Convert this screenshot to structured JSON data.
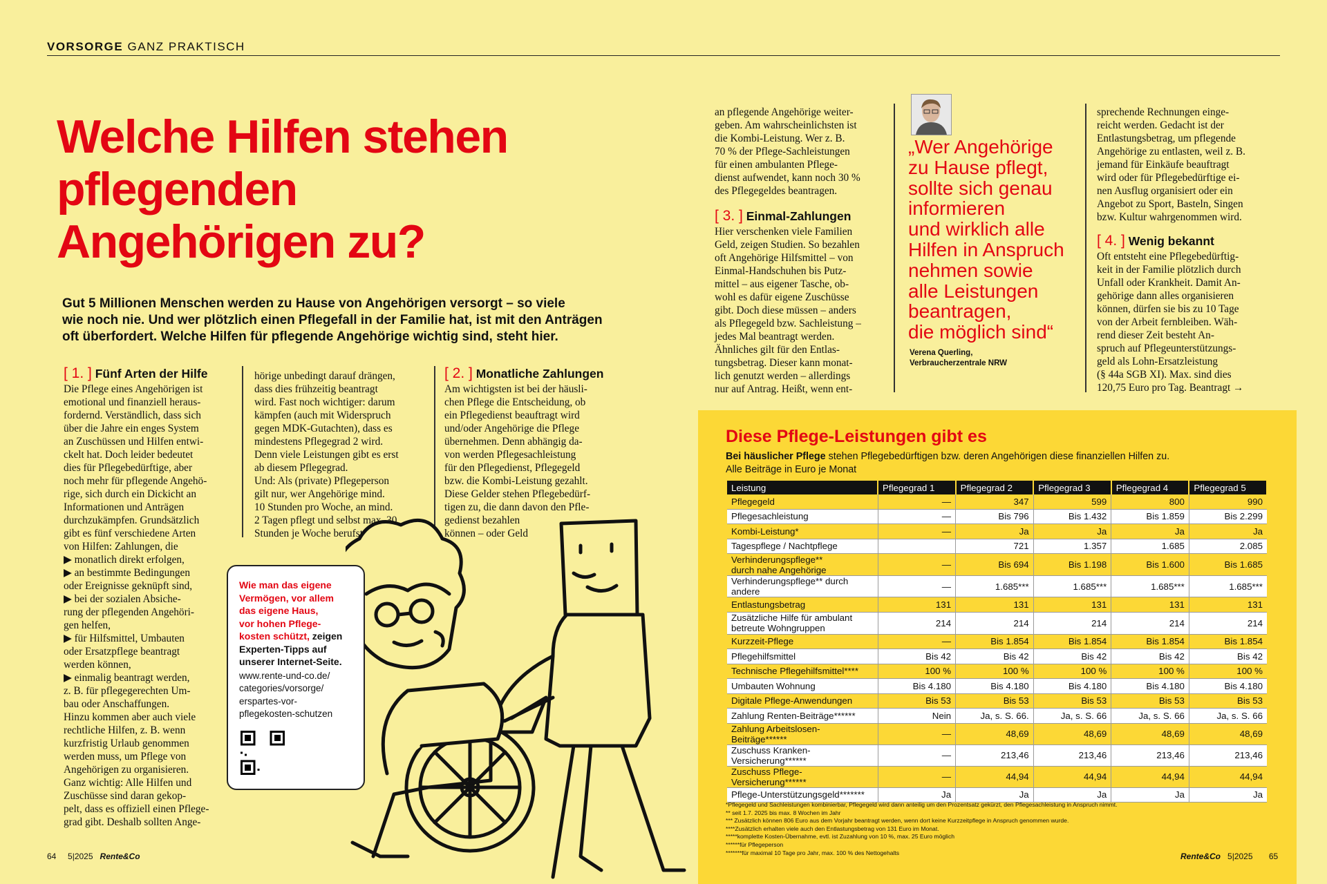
{
  "header": {
    "strong": "VORSORGE",
    "rest": " GANZ PRAKTISCH"
  },
  "title": [
    "Welche Hilfen stehen",
    "pflegenden",
    "Angehörigen zu?"
  ],
  "lead": [
    "Gut 5 Millionen Menschen werden zu Hause von Angehörigen versorgt – so viele",
    "wie noch nie. Und wer plötzlich einen Pflegefall in der Familie hat, ist mit den Anträgen",
    "oft überfordert. Welche Hilfen für pflegende Angehörige wichtig sind, steht hier."
  ],
  "sections": {
    "s1": {
      "num": "[ 1. ]",
      "title": "Fünf Arten der Hilfe"
    },
    "s2": {
      "num": "[ 2. ]",
      "title": "Monatliche Zahlungen"
    },
    "s3": {
      "num": "[ 3. ]",
      "title": "Einmal-Zahlungen"
    },
    "s4": {
      "num": "[ 4. ]",
      "title": "Wenig bekannt"
    }
  },
  "col1": [
    "Die Pflege eines Angehörigen ist",
    "emotional und finanziell heraus-",
    "fordernd. Verständlich, dass sich",
    "über die Jahre ein enges System",
    "an Zuschüssen und Hilfen entwi-",
    "ckelt hat. Doch leider bedeutet",
    "dies für Pflegebedürftige, aber",
    "noch mehr für pflegende Angehö-",
    "rige, sich durch ein Dickicht an",
    "Informationen und Anträgen",
    "durchzukämpfen. Grundsätzlich",
    "gibt es fünf verschiedene Arten",
    "von Hilfen: Zahlungen, die",
    "▶ monatlich direkt erfolgen,",
    "▶ an bestimmte Bedingungen",
    "oder Ereignisse geknüpft sind,",
    "▶ bei der sozialen Absiche-",
    "rung der pflegenden Angehöri-",
    "gen helfen,",
    "▶ für Hilfsmittel, Umbauten",
    "oder Ersatzpflege beantragt",
    "werden können,",
    "▶ einmalig beantragt werden,",
    "z. B. für pflegegerechten Um-",
    "bau oder Anschaffungen.",
    "Hinzu kommen aber auch viele",
    "rechtliche Hilfen, z. B. wenn",
    "kurzfristig Urlaub genommen",
    "werden muss, um Pflege von",
    "Angehörigen zu organisieren.",
    "Ganz wichtig: Alle Hilfen und",
    "Zuschüsse sind daran gekop-",
    "pelt, dass es offiziell einen Pflege-",
    "grad gibt. Deshalb sollten Ange-"
  ],
  "col2": [
    "hörige unbedingt darauf drängen,",
    "dass dies frühzeitig beantragt",
    "wird. Fast noch wichtiger: darum",
    "kämpfen (auch mit Widerspruch",
    "gegen MDK-Gutachten), dass es",
    "mindestens Pflegegrad 2 wird.",
    "Denn viele Leistungen gibt es erst",
    "ab diesem Pflegegrad.",
    "Und: Als (private) Pflegeperson",
    "gilt nur, wer Angehörige mind.",
    "10 Stunden pro Woche, an mind.",
    "2 Tagen pflegt und selbst max. 30",
    "Stunden je Woche berufstätig ist."
  ],
  "col3": [
    "Am wichtigsten ist bei der häusli-",
    "chen Pflege die Entscheidung, ob",
    "ein Pflegedienst beauftragt wird",
    "und/oder Angehörige die Pflege",
    "übernehmen. Denn abhängig da-",
    "von werden Pflegesachleistung",
    "für den Pflegedienst, Pflegegeld",
    "bzw. die Kombi-Leistung gezahlt.",
    "Diese Gelder stehen Pflegebedürf-",
    "tigen zu, die dann davon den Pfle-",
    "gedienst bezahlen",
    "können – oder Geld"
  ],
  "col4a": [
    "an pflegende Angehörige weiter-",
    "geben. Am wahrscheinlichsten ist",
    "die Kombi-Leistung. Wer z. B.",
    "70 % der Pflege-Sachleistungen",
    "für einen ambulanten Pflege-",
    "dienst aufwendet, kann noch 30 %",
    "des Pflegegeldes beantragen."
  ],
  "col4b": [
    "Hier verschenken viele Familien",
    "Geld, zeigen Studien. So bezahlen",
    "oft Angehörige Hilfsmittel – von",
    "Einmal-Handschuhen bis Putz-",
    "mittel – aus eigener Tasche, ob-",
    "wohl es dafür eigene Zuschüsse",
    "gibt. Doch diese müssen – anders",
    "als Pflegegeld bzw. Sachleistung –",
    "jedes Mal beantragt werden.",
    "Ähnliches gilt für den Entlas-",
    "tungsbetrag. Dieser kann monat-",
    "lich genutzt werden – allerdings",
    "nur auf Antrag. Heißt, wenn ent-"
  ],
  "col6a": [
    "sprechende Rechnungen einge-",
    "reicht werden. Gedacht ist der",
    "Entlastungsbetrag, um pflegende",
    "Angehörige zu entlasten, weil z. B.",
    "jemand für Einkäufe beauftragt",
    "wird oder für Pflegebedürftige ei-",
    "nen Ausflug organisiert oder ein",
    "Angebot zu Sport, Basteln, Singen",
    "bzw. Kultur wahrgenommen wird."
  ],
  "col6b": [
    "Oft entsteht eine Pflegebedürftig-",
    "keit in der Familie plötzlich durch",
    "Unfall oder Krankheit. Damit An-",
    "gehörige dann alles organisieren",
    "können, dürfen sie bis zu 10 Tage",
    "von der Arbeit fernbleiben. Wäh-",
    "rend dieser Zeit besteht An-",
    "spruch auf Pflegeunterstützungs-",
    "geld als Lohn-Ersatzleistung",
    "(§ 44a SGB XI). Max. sind dies",
    "120,75 Euro pro Tag. Beantragt →"
  ],
  "quote": {
    "lines": [
      "„Wer Angehörige",
      "zu Hause pflegt,",
      "sollte sich genau",
      "informieren",
      "und wirklich alle",
      "Hilfen in Anspruch",
      "nehmen sowie",
      "alle Leistungen",
      "beantragen,",
      "die möglich sind“"
    ],
    "name": "Verena Querling,",
    "org": "Verbraucherzentrale NRW"
  },
  "infobox": {
    "red": [
      "Wie man das eigene",
      "Vermögen, vor allem",
      "das eigene Haus,",
      "vor hohen Pflege-",
      "kosten schützt,"
    ],
    "red_tail": " zeigen",
    "black": [
      "Experten-Tipps auf",
      "unserer Internet-Seite."
    ],
    "url": [
      "www.rente-und-co.de/",
      "categories/vorsorge/",
      "erspartes-vor-",
      "pflegekosten-schutzen"
    ]
  },
  "table_box": {
    "title": "Diese Pflege-Leistungen gibt es",
    "sub_bold": "Bei häuslicher Pflege",
    "sub_rest": " stehen Pflegebedürftigen bzw. deren Angehörigen diese finanziellen Hilfen zu.",
    "sub2": "Alle Beiträge in Euro je Monat",
    "headers": [
      "Leistung",
      "Pflegegrad 1",
      "Pflegegrad 2",
      "Pflegegrad 3",
      "Pflegegrad 4",
      "Pflegegrad 5"
    ],
    "rows": [
      {
        "c": [
          "Pflegegeld",
          "—",
          "347",
          "599",
          "800",
          "990"
        ],
        "bg": "y"
      },
      {
        "c": [
          "Pflegesachleistung",
          "—",
          "Bis 796",
          "Bis 1.432",
          "Bis 1.859",
          "Bis 2.299"
        ],
        "bg": "w"
      },
      {
        "c": [
          "Kombi-Leistung*",
          "—",
          "Ja",
          "Ja",
          "Ja",
          "Ja"
        ],
        "bg": "y"
      },
      {
        "c": [
          "Tagespflege / Nachtpflege",
          "",
          "721",
          "1.357",
          "1.685",
          "2.085"
        ],
        "bg": "w"
      },
      {
        "c": [
          "Verhinderungspflege**",
          "—",
          "Bis 694",
          "Bis 1.198",
          "Bis 1.600",
          "Bis 1.685"
        ],
        "c2": "durch nahe Angehörige",
        "bg": "y",
        "tall": true
      },
      {
        "c": [
          "Verhinderungspflege** durch andere",
          "—",
          "1.685***",
          "1.685***",
          "1.685***",
          "1.685***"
        ],
        "bg": "w"
      },
      {
        "c": [
          "Entlastungsbetrag",
          "131",
          "131",
          "131",
          "131",
          "131"
        ],
        "bg": "y"
      },
      {
        "c": [
          "Zusätzliche Hilfe für ambulant",
          "214",
          "214",
          "214",
          "214",
          "214"
        ],
        "c2": "betreute Wohngruppen",
        "bg": "w",
        "tall": true
      },
      {
        "c": [
          "Kurzzeit-Pflege",
          "—",
          "Bis 1.854",
          "Bis 1.854",
          "Bis 1.854",
          "Bis 1.854"
        ],
        "bg": "y"
      },
      {
        "c": [
          "Pflegehilfsmittel",
          "Bis 42",
          "Bis 42",
          "Bis 42",
          "Bis 42",
          "Bis 42"
        ],
        "bg": "w"
      },
      {
        "c": [
          "Technische Pflegehilfsmittel****",
          "100 %",
          "100 %",
          "100 %",
          "100 %",
          "100 %"
        ],
        "bg": "y"
      },
      {
        "c": [
          "Umbauten Wohnung",
          "Bis 4.180",
          "Bis 4.180",
          "Bis 4.180",
          "Bis 4.180",
          "Bis 4.180"
        ],
        "bg": "w"
      },
      {
        "c": [
          "Digitale Pflege-Anwendungen",
          "Bis 53",
          "Bis 53",
          "Bis 53",
          "Bis 53",
          "Bis 53"
        ],
        "bg": "y"
      },
      {
        "c": [
          "Zahlung Renten-Beiträge******",
          "Nein",
          "Ja, s. S. 66.",
          "Ja, s. S. 66",
          "Ja, s. S. 66",
          "Ja, s. S. 66"
        ],
        "bg": "w"
      },
      {
        "c": [
          "Zahlung Arbeitslosen-Beiträge******",
          "—",
          "48,69",
          "48,69",
          "48,69",
          "48,69"
        ],
        "bg": "y"
      },
      {
        "c": [
          "Zuschuss Kranken-Versicherung******",
          "—",
          "213,46",
          "213,46",
          "213,46",
          "213,46"
        ],
        "bg": "w"
      },
      {
        "c": [
          "Zuschuss Pflege-Versicherung******",
          "—",
          "44,94",
          "44,94",
          "44,94",
          "44,94"
        ],
        "bg": "y"
      },
      {
        "c": [
          "Pflege-Unterstützungsgeld*******",
          "Ja",
          "Ja",
          "Ja",
          "Ja",
          "Ja"
        ],
        "bg": "w"
      }
    ],
    "footnotes": [
      "*Pflegegeld und Sachleistungen kombinierbar, Pflegegeld wird dann anteilig um den Prozentsatz gekürzt, den Pflegesachleistung in Anspruch nimmt.",
      "** seit 1.7. 2025 bis max. 8 Wochen im Jahr",
      "*** Zusätzlich können 806 Euro aus dem Vorjahr beantragt werden, wenn dort keine Kurzzeitpflege in Anspruch genommen wurde.",
      "****Zusätzlich erhalten viele auch den Entlastungsbetrag von 131 Euro im Monat.",
      "*****komplette Kosten-Übernahme, evtl. ist Zuzahlung von 10 %, max. 25 Euro möglich",
      "******für Pflegeperson",
      "*******für maximal 10 Tage pro Jahr, max. 100 % des Nettogehalts"
    ]
  },
  "footer_left": {
    "num": "64",
    "issue": "5|2025",
    "brand": "Rente&Co"
  },
  "footer_right": {
    "brand": "Rente&Co",
    "issue": "5|2025",
    "num": "65"
  }
}
